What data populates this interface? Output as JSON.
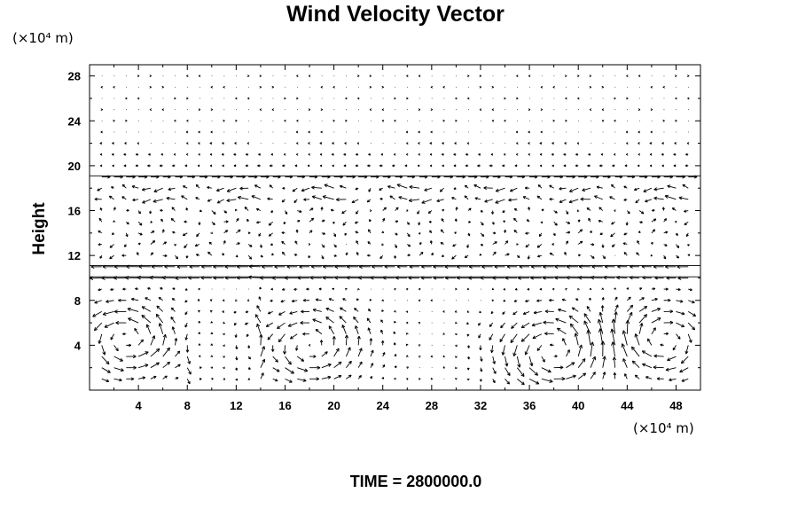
{
  "chart_data": {
    "type": "vector-field",
    "title": "Wind Velocity Vector",
    "ylabel": "Height",
    "x_unit_label": "(×10⁴ m)",
    "y_unit_label": "(×10⁴ m)",
    "xlim": [
      0,
      50
    ],
    "ylim": [
      0,
      29
    ],
    "x_ticks": [
      "4",
      "8",
      "12",
      "16",
      "20",
      "24",
      "28",
      "32",
      "36",
      "40",
      "44",
      "48"
    ],
    "y_ticks": [
      "4",
      "8",
      "12",
      "16",
      "20",
      "24",
      "28"
    ],
    "grid_x": [
      0,
      1,
      2,
      3,
      4,
      5,
      6,
      7,
      8,
      9,
      10,
      11,
      12,
      13,
      14,
      15,
      16,
      17,
      18,
      19,
      20,
      21,
      22,
      23,
      24,
      25,
      26,
      27,
      28,
      29,
      30,
      31,
      32,
      33,
      34,
      35,
      36,
      37,
      38,
      39,
      40,
      41,
      42,
      43,
      44,
      45,
      46,
      47,
      48,
      49,
      50
    ],
    "grid_y": [
      1,
      2,
      3,
      4,
      5,
      6,
      7,
      8,
      9,
      10,
      11,
      12,
      13,
      14,
      15,
      16,
      17,
      18,
      19,
      20,
      21,
      22,
      23,
      24,
      25,
      26,
      27,
      28
    ],
    "bands": [
      {
        "y": 11.1,
        "u": -1.4,
        "v": 0
      },
      {
        "y": 10.1,
        "u": -1.5,
        "v": 0
      },
      {
        "y": 19.1,
        "u": 1.1,
        "v": 0
      },
      {
        "y": 17.1,
        "u": -0.9,
        "v": 0
      },
      {
        "y": 18.1,
        "u": -0.8,
        "v": 0
      }
    ],
    "vortices": [
      {
        "x": 3,
        "y": 4.5,
        "strength": 2.2
      },
      {
        "x": 18,
        "y": 4.0,
        "strength": 2.0
      },
      {
        "x": 38,
        "y": 3.5,
        "strength": 2.2
      },
      {
        "x": 47,
        "y": 4.5,
        "strength": -2.0
      }
    ],
    "jets": [
      {
        "x": 14,
        "v": 2.5
      },
      {
        "x": 8,
        "v": -1.8
      }
    ]
  },
  "footer": {
    "time_label": "TIME = 2800000.0"
  }
}
